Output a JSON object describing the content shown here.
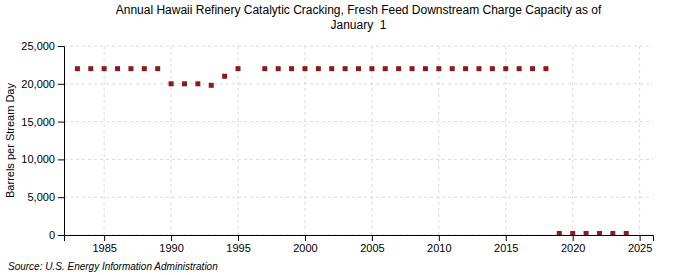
{
  "chart_data": {
    "type": "scatter",
    "title": "Annual Hawaii Refinery Catalytic Cracking, Fresh Feed Downstream Charge Capacity as of\nJanuary  1",
    "ylabel": "Barrels per Stream Day",
    "annotations": [
      "Source: U.S. Energy Information Administration"
    ],
    "x": [
      1983,
      1984,
      1985,
      1986,
      1987,
      1988,
      1989,
      1990,
      1991,
      1992,
      1993,
      1994,
      1995,
      1997,
      1998,
      1999,
      2000,
      2001,
      2002,
      2003,
      2004,
      2005,
      2006,
      2007,
      2008,
      2009,
      2010,
      2011,
      2012,
      2013,
      2014,
      2015,
      2016,
      2017,
      2018,
      2019,
      2020,
      2021,
      2022,
      2023,
      2024
    ],
    "values": [
      22000,
      22000,
      22000,
      22000,
      22000,
      22000,
      22000,
      20000,
      20000,
      20000,
      19800,
      21000,
      22000,
      22000,
      22000,
      22000,
      22000,
      22000,
      22000,
      22000,
      22000,
      22000,
      22000,
      22000,
      22000,
      22000,
      22000,
      22000,
      22000,
      22000,
      22000,
      22000,
      22000,
      22000,
      22000,
      200,
      200,
      200,
      200,
      200,
      200
    ],
    "color": "#8b1a1a",
    "marker": "square",
    "xlim": [
      1982,
      2026
    ],
    "xticks": [
      1985,
      1990,
      1995,
      2000,
      2005,
      2010,
      2015,
      2020,
      2025
    ],
    "ylim": [
      0,
      25000
    ],
    "yticks": [
      0,
      {
        "value": 5000,
        "label": "5,000"
      },
      {
        "value": 10000,
        "label": "10,000"
      },
      {
        "value": 15000,
        "label": "15,000"
      },
      {
        "value": 20000,
        "label": "20,000"
      },
      {
        "value": 25000,
        "label": "25,000"
      }
    ],
    "grid": true
  }
}
